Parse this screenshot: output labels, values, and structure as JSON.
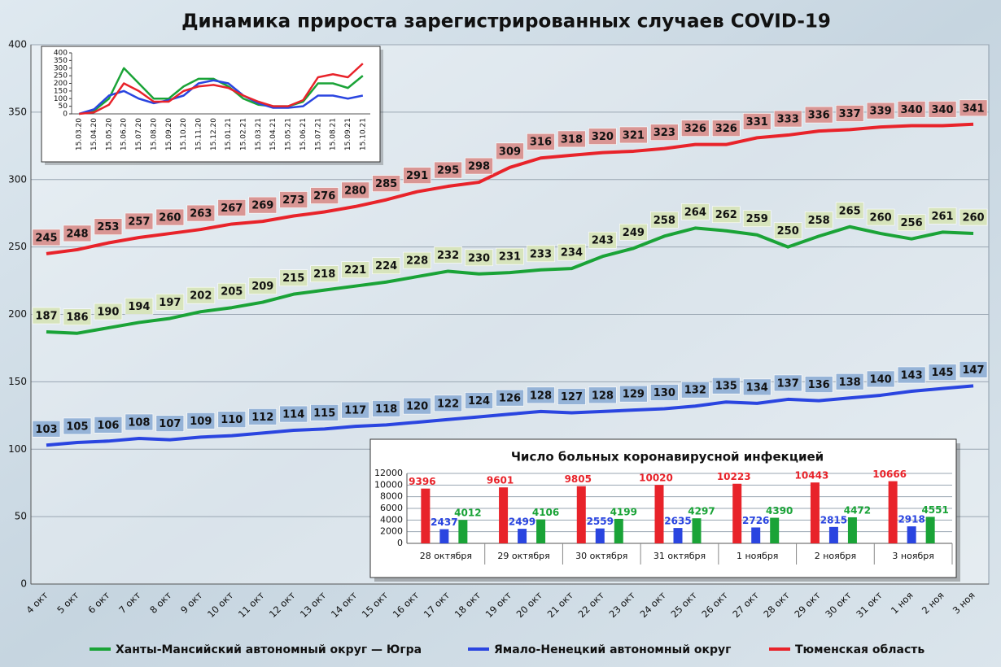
{
  "chart_data": [
    {
      "type": "line",
      "title": "Динамика прироста зарегистрированных случаев COVID-19",
      "categories": [
        "4 окт",
        "5 окт",
        "6 окт",
        "7 окт",
        "8 окт",
        "9 окт",
        "10 окт",
        "11 окт",
        "12 окт",
        "13 окт",
        "14 окт",
        "15 окт",
        "16 окт",
        "17 окт",
        "18 окт",
        "19 окт",
        "20 окт",
        "21 окт",
        "22 окт",
        "23 окт",
        "24 окт",
        "25 окт",
        "26 окт",
        "27 окт",
        "28 окт",
        "29 окт",
        "30 окт",
        "31 окт",
        "1 ноя",
        "2 ноя",
        "3 ноя"
      ],
      "series": [
        {
          "name": "Ханты-Мансийский автономный округ — Югра",
          "color": "#1aa337",
          "label_color": "#d7e4bc",
          "values": [
            187,
            186,
            190,
            194,
            197,
            202,
            205,
            209,
            215,
            218,
            221,
            224,
            228,
            232,
            230,
            231,
            233,
            234,
            243,
            249,
            258,
            264,
            262,
            259,
            250,
            258,
            265,
            260,
            256,
            261,
            260
          ]
        },
        {
          "name": "Ямало-Ненецкий автономный округ",
          "color": "#2a45e0",
          "label_color": "#95b3d7",
          "values": [
            103,
            105,
            106,
            108,
            107,
            109,
            110,
            112,
            114,
            115,
            117,
            118,
            120,
            122,
            124,
            126,
            128,
            127,
            128,
            129,
            130,
            132,
            135,
            134,
            137,
            136,
            138,
            140,
            143,
            145,
            147
          ]
        },
        {
          "name": "Тюменская область",
          "color": "#e8232a",
          "label_color": "#d99694",
          "values": [
            245,
            248,
            253,
            257,
            260,
            263,
            267,
            269,
            273,
            276,
            280,
            285,
            291,
            295,
            298,
            309,
            316,
            318,
            320,
            321,
            323,
            326,
            326,
            331,
            333,
            336,
            337,
            339,
            340,
            340,
            341
          ]
        }
      ],
      "ylim": [
        0,
        400
      ],
      "yticks": [
        0,
        50,
        100,
        150,
        200,
        250,
        300,
        350,
        400
      ],
      "grid": true,
      "data_labels": true,
      "legend": "bottom"
    },
    {
      "type": "line",
      "categories": [
        "15.03.20",
        "15.04.20",
        "15.05.20",
        "15.06.20",
        "15.07.20",
        "15.08.20",
        "15.09.20",
        "15.10.20",
        "15.11.20",
        "15.12.20",
        "15.01.21",
        "15.02.21",
        "15.03.21",
        "15.04.21",
        "15.05.21",
        "15.06.21",
        "15.07.21",
        "15.08.21",
        "15.09.21",
        "15.10.21"
      ],
      "series": [
        {
          "color": "#1aa337",
          "values": [
            0,
            20,
            100,
            300,
            200,
            100,
            100,
            180,
            230,
            230,
            180,
            100,
            60,
            50,
            50,
            80,
            200,
            200,
            170,
            250
          ]
        },
        {
          "color": "#2a45e0",
          "values": [
            0,
            30,
            120,
            150,
            100,
            70,
            90,
            120,
            200,
            220,
            200,
            120,
            70,
            40,
            40,
            50,
            120,
            120,
            100,
            120
          ]
        },
        {
          "color": "#e8232a",
          "values": [
            0,
            10,
            60,
            200,
            150,
            80,
            80,
            150,
            180,
            190,
            170,
            120,
            80,
            50,
            50,
            90,
            240,
            260,
            240,
            330
          ]
        }
      ],
      "ylim": [
        0,
        400
      ],
      "yticks": [
        0,
        50,
        100,
        150,
        200,
        250,
        300,
        350,
        400
      ],
      "grid": false,
      "data_labels": false
    },
    {
      "type": "bar",
      "title": "Число больных коронавирусной инфекцией",
      "categories": [
        "28 октября",
        "29 октября",
        "30 октября",
        "31 октября",
        "1 ноября",
        "2 ноября",
        "3 ноября"
      ],
      "series": [
        {
          "color": "#e8232a",
          "values": [
            9396,
            9601,
            9805,
            10020,
            10223,
            10443,
            10666
          ]
        },
        {
          "color": "#2a45e0",
          "values": [
            2437,
            2499,
            2559,
            2635,
            2726,
            2815,
            2918
          ]
        },
        {
          "color": "#1aa337",
          "values": [
            4012,
            4106,
            4199,
            4297,
            4390,
            4472,
            4551
          ]
        }
      ],
      "ylim": [
        0,
        12000
      ],
      "yticks": [
        0,
        2000,
        4000,
        6000,
        8000,
        10000,
        12000
      ],
      "grid": true,
      "data_labels": true
    }
  ]
}
